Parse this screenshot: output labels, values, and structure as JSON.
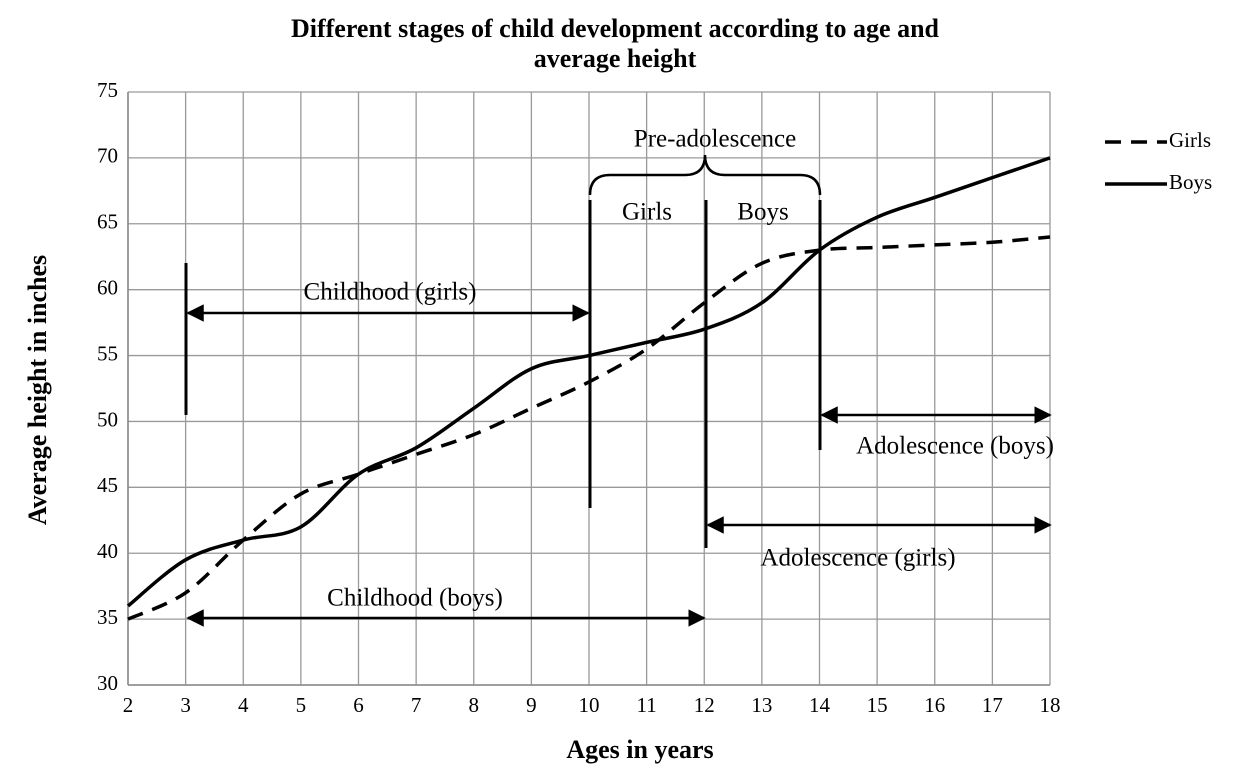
{
  "chart_data": {
    "type": "line",
    "title": "Different stages of child development according to age and average height",
    "xlabel": "Ages in years",
    "ylabel": "Average height in inches",
    "x": [
      2,
      3,
      4,
      5,
      6,
      7,
      8,
      9,
      10,
      11,
      12,
      13,
      14,
      15,
      16,
      17,
      18
    ],
    "series": [
      {
        "name": "Girls",
        "color": "#000000",
        "dash": true,
        "values": [
          35,
          37,
          41,
          44.5,
          46,
          47.5,
          49,
          51,
          53,
          55.5,
          59,
          62,
          63,
          63.2,
          63.4,
          63.6,
          64
        ]
      },
      {
        "name": "Boys",
        "color": "#000000",
        "dash": false,
        "values": [
          36,
          39.5,
          41,
          42,
          46,
          48,
          51,
          54,
          55,
          56,
          57,
          59,
          63,
          65.5,
          67,
          68.5,
          70
        ]
      }
    ],
    "xlim": [
      2,
      18
    ],
    "xticks": [
      2,
      3,
      4,
      5,
      6,
      7,
      8,
      9,
      10,
      11,
      12,
      13,
      14,
      15,
      16,
      17,
      18
    ],
    "ylim": [
      30,
      75
    ],
    "yticks": [
      30,
      35,
      40,
      45,
      50,
      55,
      60,
      65,
      70,
      75
    ],
    "grid": true,
    "legend": "right",
    "annotations": [
      "Pre-adolescence",
      "Girls",
      "Boys",
      "Childhood (girls)",
      "Adolescence (boys)",
      "Adolescence (girls)",
      "Childhood (boys)"
    ]
  }
}
